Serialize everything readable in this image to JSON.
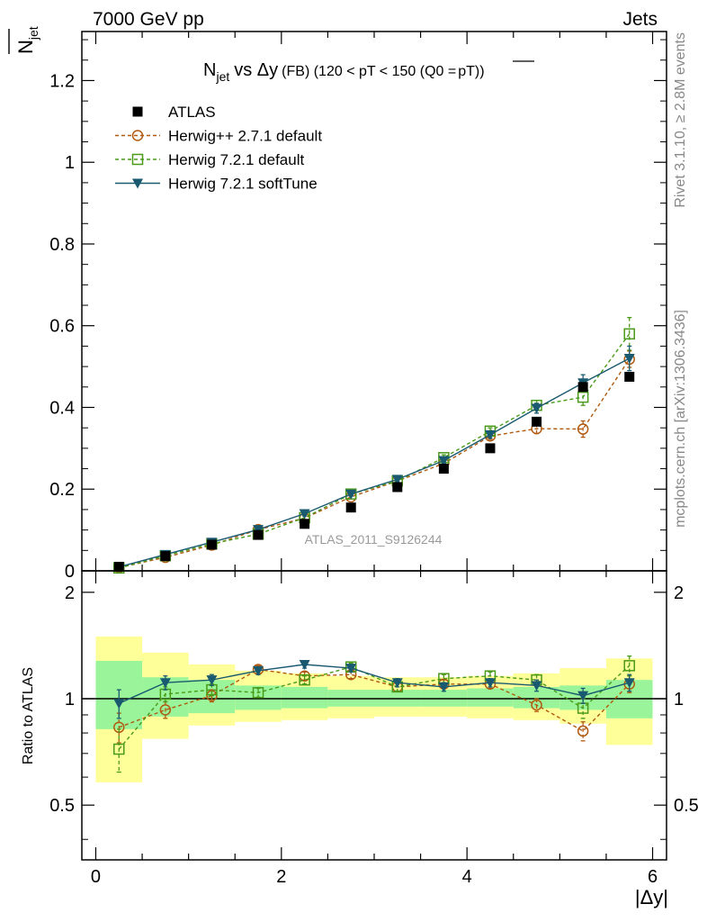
{
  "header": {
    "energy_label": "7000 GeV pp",
    "process_label": "Jets"
  },
  "side_labels": {
    "rivet": "Rivet 3.1.10, ≥ 2.8M events",
    "mcplots": "mcplots.cern.ch [arXiv:1306.3436]"
  },
  "watermark": "ATLAS_2011_S9126244",
  "colors": {
    "atlas": "#000000",
    "herwigpp": "#b05a10",
    "herwig721": "#4a9a1a",
    "softtune": "#1a5a70",
    "band_inner": "#9af59a",
    "band_outer": "#ffff99"
  },
  "chart_data": [
    {
      "type": "scatter",
      "title": "N_jet vs Δy (FB) (120 < pT < 150 (Q0 = pT))",
      "title_parts": {
        "main": "N",
        "sub": "jet",
        "vs": "vs Δy",
        "small": "(FB) (120 < pT < 150 (Q0 =",
        "over": "pT",
        "close": "))"
      },
      "ylabel": "N_jet (mean)",
      "ylabel_parts": {
        "main": "N",
        "sub": "jet"
      },
      "xlim": [
        -0.15,
        6.15
      ],
      "ylim": [
        0,
        1.32
      ],
      "y_ticks": [
        0,
        0.2,
        0.4,
        0.6,
        0.8,
        1,
        1.2
      ],
      "y_tick_labels": [
        "0",
        "0.2",
        "0.4",
        "0.6",
        "0.8",
        "1",
        "1.2"
      ],
      "legend_position": "top-left",
      "x": [
        0.25,
        0.75,
        1.25,
        1.75,
        2.25,
        2.75,
        3.25,
        3.75,
        4.25,
        4.75,
        5.25,
        5.75
      ],
      "series": [
        {
          "name": "ATLAS",
          "key": "atlas",
          "values": [
            0.01,
            0.036,
            0.064,
            0.088,
            0.115,
            0.155,
            0.205,
            0.25,
            0.3,
            0.365,
            0.45,
            0.475
          ]
        },
        {
          "name": "Herwig++ 2.7.1 default",
          "key": "herwigpp",
          "values": [
            0.008,
            0.033,
            0.063,
            0.101,
            0.129,
            0.181,
            0.22,
            0.263,
            0.33,
            0.348,
            0.347,
            0.518
          ],
          "errors": [
            0.001,
            0.002,
            0.003,
            0.004,
            0.005,
            0.005,
            0.006,
            0.007,
            0.008,
            0.012,
            0.02,
            0.02
          ]
        },
        {
          "name": "Herwig 7.2.1 default",
          "key": "herwig721",
          "values": [
            0.007,
            0.037,
            0.066,
            0.09,
            0.13,
            0.188,
            0.22,
            0.277,
            0.342,
            0.405,
            0.425,
            0.58
          ],
          "errors": [
            0.001,
            0.002,
            0.003,
            0.004,
            0.005,
            0.005,
            0.006,
            0.007,
            0.008,
            0.012,
            0.02,
            0.04
          ]
        },
        {
          "name": "Herwig 7.2.1 softTune",
          "key": "softtune",
          "values": [
            0.0095,
            0.04,
            0.07,
            0.101,
            0.14,
            0.188,
            0.224,
            0.27,
            0.333,
            0.398,
            0.46,
            0.52
          ],
          "errors": [
            0.001,
            0.002,
            0.003,
            0.004,
            0.005,
            0.005,
            0.006,
            0.007,
            0.008,
            0.012,
            0.02,
            0.03
          ]
        }
      ]
    },
    {
      "type": "scatter",
      "title": "",
      "xlabel": "|Δy|",
      "ylabel": "Ratio to ATLAS",
      "xlim": [
        -0.15,
        6.15
      ],
      "ylim": [
        0.35,
        2.3
      ],
      "x_ticks": [
        0,
        2,
        4,
        6
      ],
      "x_tick_labels": [
        "0",
        "2",
        "4",
        "6"
      ],
      "y_ticks": [
        0.5,
        1,
        2
      ],
      "y_tick_labels": [
        "0.5",
        "1",
        "2"
      ],
      "x": [
        0.25,
        0.75,
        1.25,
        1.75,
        2.25,
        2.75,
        3.25,
        3.75,
        4.25,
        4.75,
        5.25,
        5.75
      ],
      "bands": [
        {
          "x0": 0,
          "x1": 0.5,
          "inner": [
            0.82,
            1.28
          ],
          "outer": [
            0.58,
            1.5
          ]
        },
        {
          "x0": 0.5,
          "x1": 1.0,
          "inner": [
            0.89,
            1.15
          ],
          "outer": [
            0.77,
            1.35
          ]
        },
        {
          "x0": 1.0,
          "x1": 1.5,
          "inner": [
            0.91,
            1.13
          ],
          "outer": [
            0.84,
            1.25
          ]
        },
        {
          "x0": 1.5,
          "x1": 2.0,
          "inner": [
            0.93,
            1.09
          ],
          "outer": [
            0.86,
            1.2
          ]
        },
        {
          "x0": 2.0,
          "x1": 2.5,
          "inner": [
            0.94,
            1.08
          ],
          "outer": [
            0.87,
            1.18
          ]
        },
        {
          "x0": 2.5,
          "x1": 3.0,
          "inner": [
            0.95,
            1.06
          ],
          "outer": [
            0.88,
            1.16
          ]
        },
        {
          "x0": 3.0,
          "x1": 3.5,
          "inner": [
            0.95,
            1.06
          ],
          "outer": [
            0.89,
            1.15
          ]
        },
        {
          "x0": 3.5,
          "x1": 4.0,
          "inner": [
            0.95,
            1.06
          ],
          "outer": [
            0.89,
            1.15
          ]
        },
        {
          "x0": 4.0,
          "x1": 4.5,
          "inner": [
            0.95,
            1.07
          ],
          "outer": [
            0.88,
            1.16
          ]
        },
        {
          "x0": 4.5,
          "x1": 5.0,
          "inner": [
            0.94,
            1.08
          ],
          "outer": [
            0.87,
            1.18
          ]
        },
        {
          "x0": 5.0,
          "x1": 5.5,
          "inner": [
            0.93,
            1.09
          ],
          "outer": [
            0.85,
            1.22
          ]
        },
        {
          "x0": 5.5,
          "x1": 6.0,
          "inner": [
            0.88,
            1.13
          ],
          "outer": [
            0.74,
            1.3
          ]
        }
      ],
      "series": [
        {
          "name": "Herwig++ 2.7.1 default",
          "key": "herwigpp",
          "values": [
            0.83,
            0.93,
            1.02,
            1.21,
            1.16,
            1.17,
            1.08,
            1.1,
            1.1,
            0.96,
            0.81,
            1.1
          ],
          "errors": [
            0.08,
            0.05,
            0.04,
            0.03,
            0.03,
            0.03,
            0.03,
            0.03,
            0.03,
            0.04,
            0.05,
            0.06
          ]
        },
        {
          "name": "Herwig 7.2.1 default",
          "key": "herwig721",
          "values": [
            0.72,
            1.03,
            1.06,
            1.04,
            1.13,
            1.23,
            1.08,
            1.14,
            1.16,
            1.13,
            0.94,
            1.24
          ],
          "errors": [
            0.1,
            0.05,
            0.04,
            0.03,
            0.03,
            0.03,
            0.03,
            0.03,
            0.03,
            0.04,
            0.06,
            0.08
          ]
        },
        {
          "name": "Herwig 7.2.1 softTune",
          "key": "softtune",
          "values": [
            0.97,
            1.11,
            1.13,
            1.2,
            1.25,
            1.22,
            1.11,
            1.08,
            1.11,
            1.09,
            1.02,
            1.11
          ],
          "errors": [
            0.09,
            0.05,
            0.04,
            0.03,
            0.03,
            0.03,
            0.03,
            0.03,
            0.03,
            0.04,
            0.05,
            0.06
          ]
        }
      ]
    }
  ]
}
